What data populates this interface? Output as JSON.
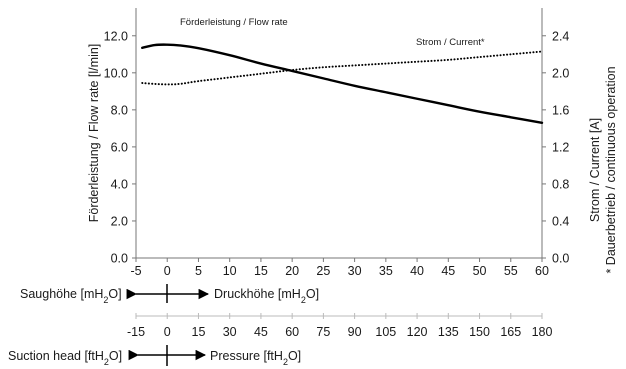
{
  "chart_data": {
    "type": "line",
    "x_axis": {
      "range": [
        -5,
        60
      ],
      "ticks": [
        "-5",
        "0",
        "5",
        "10",
        "15",
        "20",
        "25",
        "30",
        "35",
        "40",
        "45",
        "50",
        "55",
        "60"
      ]
    },
    "y_left": {
      "label": "Förderleistung / Flow rate [l/min]",
      "range": [
        0,
        13.5
      ],
      "ticks": [
        "0.0",
        "2.0",
        "4.0",
        "6.0",
        "8.0",
        "10.0",
        "12.0"
      ]
    },
    "y_right": {
      "label": "Strom / Current [A]",
      "label2": "* Dauerbetrieb / continuous operation",
      "range": [
        0,
        2.7
      ],
      "ticks": [
        "0.0",
        "0.4",
        "0.8",
        "1.2",
        "1.6",
        "2.0",
        "2.4"
      ]
    },
    "grid": false,
    "series": [
      {
        "name": "Förderleistung / Flow rate",
        "axis": "left",
        "style": "solid",
        "color": "#000000",
        "x": [
          -4,
          -2,
          0,
          2,
          5,
          10,
          15,
          20,
          25,
          30,
          35,
          40,
          45,
          50,
          55,
          60
        ],
        "y": [
          11.35,
          11.5,
          11.52,
          11.48,
          11.33,
          10.95,
          10.5,
          10.1,
          9.7,
          9.3,
          8.95,
          8.6,
          8.25,
          7.9,
          7.6,
          7.3
        ]
      },
      {
        "name": "Strom / Current*",
        "axis": "right",
        "style": "dotted",
        "color": "#000000",
        "x": [
          -4,
          -2,
          0,
          2,
          5,
          10,
          15,
          20,
          25,
          30,
          35,
          40,
          45,
          50,
          55,
          60
        ],
        "y": [
          1.89,
          1.88,
          1.875,
          1.88,
          1.91,
          1.95,
          1.99,
          2.03,
          2.06,
          2.08,
          2.1,
          2.12,
          2.14,
          2.17,
          2.2,
          2.23
        ]
      }
    ]
  },
  "pressure_scales": {
    "mh2o": {
      "left_label": "Saughöhe [mH2O]",
      "right_label": "Druckhöhe [mH2O]"
    },
    "fth2o": {
      "ticks": [
        "-15",
        "0",
        "15",
        "30",
        "45",
        "60",
        "75",
        "90",
        "105",
        "120",
        "135",
        "150",
        "165",
        "180"
      ],
      "left_label": "Suction head [ftH2O]",
      "right_label": "Pressure [ftH2O]"
    }
  }
}
